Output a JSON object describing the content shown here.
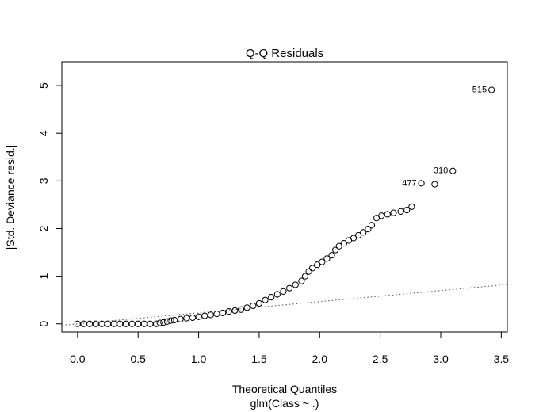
{
  "chart_data": {
    "type": "scatter",
    "title": "Q-Q Residuals",
    "xlabel": "Theoretical Quantiles",
    "xlabel_sub": "glm(Class ~ .)",
    "ylabel": "|Std. Deviance resid.|",
    "xlim": [
      -0.13,
      3.55
    ],
    "ylim": [
      -0.17,
      5.5
    ],
    "x_ticks": [
      0.0,
      0.5,
      1.0,
      1.5,
      2.0,
      2.5,
      3.0,
      3.5
    ],
    "x_tick_labels": [
      "0.0",
      "0.5",
      "1.0",
      "1.5",
      "2.0",
      "2.5",
      "3.0",
      "3.5"
    ],
    "y_ticks": [
      0,
      1,
      2,
      3,
      4,
      5
    ],
    "y_tick_labels": [
      "0",
      "1",
      "2",
      "3",
      "4",
      "5"
    ],
    "grid": false,
    "reference_line": {
      "style": "dotted",
      "intercept": 0.0,
      "slope": 0.233
    },
    "series": [
      {
        "points": [
          [
            0.0,
            0.0
          ],
          [
            0.05,
            0.0
          ],
          [
            0.1,
            0.0
          ],
          [
            0.15,
            0.0
          ],
          [
            0.2,
            0.0
          ],
          [
            0.25,
            0.0
          ],
          [
            0.3,
            0.0
          ],
          [
            0.35,
            0.0
          ],
          [
            0.4,
            0.0
          ],
          [
            0.45,
            0.0
          ],
          [
            0.5,
            0.0
          ],
          [
            0.55,
            0.0
          ],
          [
            0.6,
            0.0
          ],
          [
            0.65,
            0.0
          ],
          [
            0.68,
            0.02
          ],
          [
            0.71,
            0.03
          ],
          [
            0.74,
            0.05
          ],
          [
            0.77,
            0.07
          ],
          [
            0.8,
            0.08
          ],
          [
            0.85,
            0.1
          ],
          [
            0.9,
            0.12
          ],
          [
            0.95,
            0.13
          ],
          [
            1.0,
            0.15
          ],
          [
            1.05,
            0.17
          ],
          [
            1.1,
            0.19
          ],
          [
            1.15,
            0.21
          ],
          [
            1.2,
            0.23
          ],
          [
            1.25,
            0.26
          ],
          [
            1.3,
            0.28
          ],
          [
            1.35,
            0.3
          ],
          [
            1.4,
            0.34
          ],
          [
            1.45,
            0.38
          ],
          [
            1.5,
            0.43
          ],
          [
            1.55,
            0.5
          ],
          [
            1.6,
            0.56
          ],
          [
            1.65,
            0.62
          ],
          [
            1.7,
            0.68
          ],
          [
            1.75,
            0.75
          ],
          [
            1.8,
            0.82
          ],
          [
            1.85,
            0.9
          ],
          [
            1.88,
            1.0
          ],
          [
            1.91,
            1.1
          ],
          [
            1.94,
            1.17
          ],
          [
            1.98,
            1.24
          ],
          [
            2.02,
            1.3
          ],
          [
            2.06,
            1.37
          ],
          [
            2.1,
            1.44
          ],
          [
            2.13,
            1.55
          ],
          [
            2.16,
            1.63
          ],
          [
            2.2,
            1.69
          ],
          [
            2.24,
            1.75
          ],
          [
            2.28,
            1.8
          ],
          [
            2.32,
            1.86
          ],
          [
            2.36,
            1.92
          ],
          [
            2.4,
            1.99
          ],
          [
            2.43,
            2.07
          ],
          [
            2.47,
            2.22
          ],
          [
            2.51,
            2.27
          ],
          [
            2.56,
            2.3
          ],
          [
            2.61,
            2.33
          ],
          [
            2.67,
            2.36
          ],
          [
            2.72,
            2.39
          ],
          [
            2.76,
            2.46
          ],
          [
            2.84,
            2.95
          ],
          [
            2.95,
            2.93
          ],
          [
            3.1,
            3.21
          ],
          [
            3.42,
            4.91
          ]
        ]
      }
    ],
    "annotations": [
      {
        "label": "515",
        "x": 3.42,
        "y": 4.91
      },
      {
        "label": "310",
        "x": 3.1,
        "y": 3.21
      },
      {
        "label": "477",
        "x": 2.84,
        "y": 2.95
      }
    ]
  }
}
